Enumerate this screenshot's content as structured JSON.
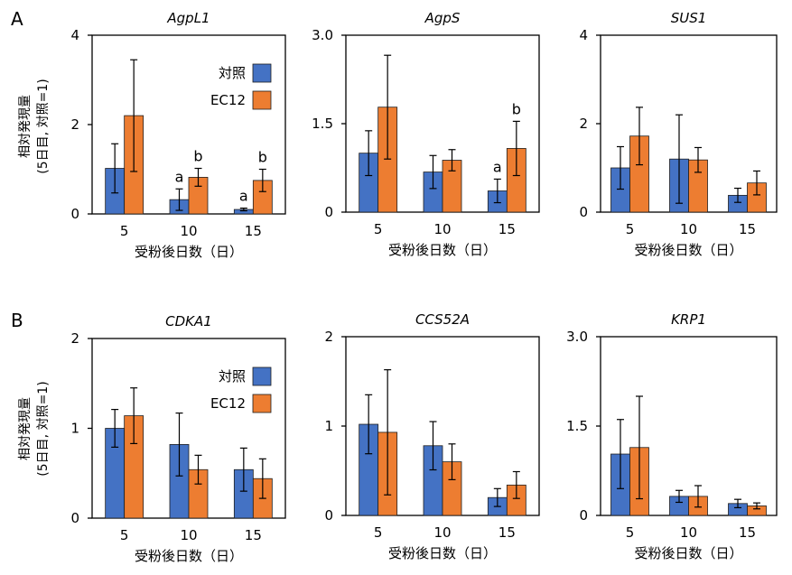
{
  "panel_letters": [
    "A",
    "B"
  ],
  "y_axis_label_line1": "相対発現量",
  "y_axis_label_line2": "(5日目, 対照=1)",
  "legend": {
    "control": "対照",
    "treatment": "EC12"
  },
  "colors": {
    "control": "#4472c4",
    "treatment": "#ed7d31",
    "axis": "#000000"
  },
  "chart_data": [
    {
      "type": "bar",
      "title": "AgpL1",
      "xlabel": "受粉後日数（日）",
      "categories": [
        "5",
        "10",
        "15"
      ],
      "ylim": [
        0,
        4
      ],
      "yticks": [
        "0",
        "2",
        "4"
      ],
      "legend": true,
      "series": [
        {
          "name": "対照",
          "values": [
            1.02,
            0.32,
            0.1
          ],
          "errors": [
            0.55,
            0.24,
            0.03
          ]
        },
        {
          "name": "EC12",
          "values": [
            2.2,
            0.82,
            0.75
          ],
          "errors": [
            1.25,
            0.2,
            0.25
          ]
        }
      ],
      "annotations": [
        {
          "category": "10",
          "series": 0,
          "text": "a"
        },
        {
          "category": "10",
          "series": 1,
          "text": "b"
        },
        {
          "category": "15",
          "series": 0,
          "text": "a"
        },
        {
          "category": "15",
          "series": 1,
          "text": "b"
        }
      ]
    },
    {
      "type": "bar",
      "title": "AgpS",
      "xlabel": "受粉後日数（日）",
      "categories": [
        "5",
        "10",
        "15"
      ],
      "ylim": [
        0,
        3.0
      ],
      "yticks": [
        "0",
        "1.5",
        "3.0"
      ],
      "legend": false,
      "series": [
        {
          "name": "対照",
          "values": [
            1.0,
            0.68,
            0.36
          ],
          "errors": [
            0.38,
            0.28,
            0.2
          ]
        },
        {
          "name": "EC12",
          "values": [
            1.78,
            0.88,
            1.08
          ],
          "errors": [
            0.88,
            0.18,
            0.46
          ]
        }
      ],
      "annotations": [
        {
          "category": "15",
          "series": 0,
          "text": "a"
        },
        {
          "category": "15",
          "series": 1,
          "text": "b"
        }
      ]
    },
    {
      "type": "bar",
      "title": "SUS1",
      "xlabel": "受粉後日数（日）",
      "categories": [
        "5",
        "10",
        "15"
      ],
      "ylim": [
        0,
        4
      ],
      "yticks": [
        "0",
        "2",
        "4"
      ],
      "legend": false,
      "series": [
        {
          "name": "対照",
          "values": [
            1.0,
            1.2,
            0.38
          ],
          "errors": [
            0.48,
            1.0,
            0.16
          ]
        },
        {
          "name": "EC12",
          "values": [
            1.72,
            1.18,
            0.66
          ],
          "errors": [
            0.65,
            0.28,
            0.27
          ]
        }
      ],
      "annotations": []
    },
    {
      "type": "bar",
      "title": "CDKA1",
      "xlabel": "受粉後日数（日）",
      "categories": [
        "5",
        "10",
        "15"
      ],
      "ylim": [
        0,
        2
      ],
      "yticks": [
        "0",
        "1",
        "2"
      ],
      "legend": true,
      "series": [
        {
          "name": "対照",
          "values": [
            1.0,
            0.82,
            0.54
          ],
          "errors": [
            0.21,
            0.35,
            0.24
          ]
        },
        {
          "name": "EC12",
          "values": [
            1.14,
            0.54,
            0.44
          ],
          "errors": [
            0.31,
            0.16,
            0.22
          ]
        }
      ],
      "annotations": []
    },
    {
      "type": "bar",
      "title": "CCS52A",
      "xlabel": "受粉後日数（日）",
      "categories": [
        "5",
        "10",
        "15"
      ],
      "ylim": [
        0,
        2
      ],
      "yticks": [
        "0",
        "1",
        "2"
      ],
      "legend": false,
      "series": [
        {
          "name": "対照",
          "values": [
            1.02,
            0.78,
            0.2
          ],
          "errors": [
            0.33,
            0.27,
            0.1
          ]
        },
        {
          "name": "EC12",
          "values": [
            0.93,
            0.6,
            0.34
          ],
          "errors": [
            0.7,
            0.2,
            0.15
          ]
        }
      ],
      "annotations": []
    },
    {
      "type": "bar",
      "title": "KRP1",
      "xlabel": "受粉後日数（日）",
      "categories": [
        "5",
        "10",
        "15"
      ],
      "ylim": [
        0,
        3.0
      ],
      "yticks": [
        "0",
        "1.5",
        "3.0"
      ],
      "legend": false,
      "series": [
        {
          "name": "対照",
          "values": [
            1.03,
            0.32,
            0.2
          ],
          "errors": [
            0.58,
            0.1,
            0.07
          ]
        },
        {
          "name": "EC12",
          "values": [
            1.14,
            0.32,
            0.16
          ],
          "errors": [
            0.86,
            0.18,
            0.05
          ]
        }
      ],
      "annotations": []
    }
  ]
}
